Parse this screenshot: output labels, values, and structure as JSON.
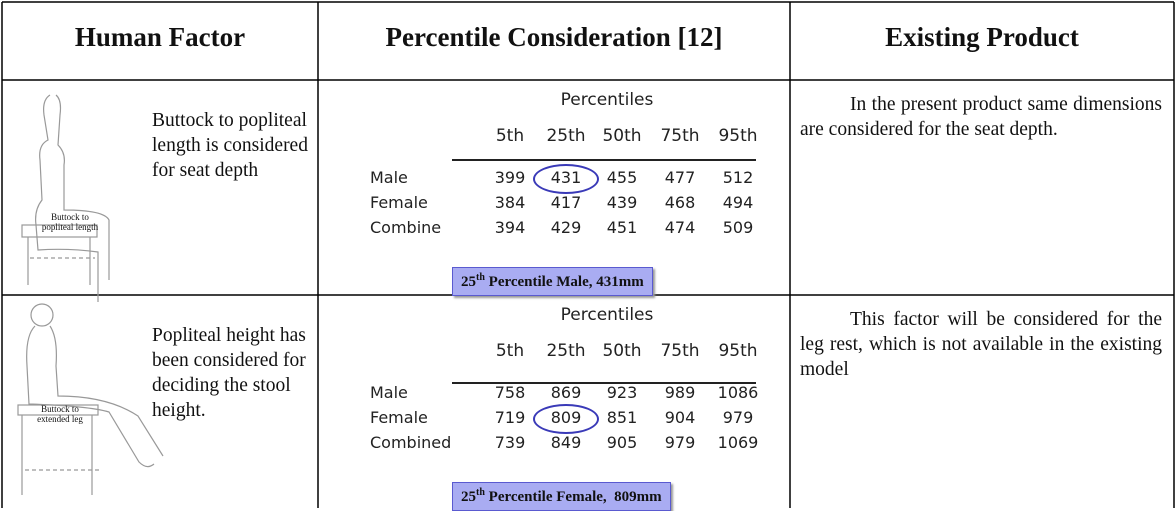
{
  "table": {
    "headers": [
      "Human Factor",
      "Percentile Consideration [12]",
      "Existing Product"
    ],
    "rows": [
      {
        "figure_label": "Buttock to popliteal length",
        "factor": "Buttock to popliteal length is considered for seat depth",
        "percentiles": {
          "title": "Percentiles",
          "columns": [
            "5th",
            "25th",
            "50th",
            "75th",
            "95th"
          ],
          "rows": [
            {
              "group": "Male",
              "values": [
                399,
                431,
                455,
                477,
                512
              ]
            },
            {
              "group": "Female",
              "values": [
                384,
                417,
                439,
                468,
                494
              ]
            },
            {
              "group": "Combine",
              "values": [
                394,
                429,
                451,
                474,
                509
              ]
            }
          ]
        },
        "callout": {
          "number": "25",
          "suffix": "th",
          "text": "Percentile Male, 431mm"
        },
        "existing": "In the present product same dimensions are considered for the seat depth."
      },
      {
        "figure_label": "Buttock to extended leg",
        "factor": "Popliteal height has been considered for deciding the stool height.",
        "percentiles": {
          "title": "Percentiles",
          "columns": [
            "5th",
            "25th",
            "50th",
            "75th",
            "95th"
          ],
          "rows": [
            {
              "group": "Male",
              "values": [
                758,
                869,
                923,
                989,
                1086
              ]
            },
            {
              "group": "Female",
              "values": [
                719,
                809,
                851,
                904,
                979
              ]
            },
            {
              "group": "Combined",
              "values": [
                739,
                849,
                905,
                979,
                1069
              ]
            }
          ]
        },
        "callout": {
          "number": "25",
          "suffix": "th",
          "text": "Percentile Female,  809mm"
        },
        "existing": "This factor will be considered for the leg rest, which is not available in the existing model"
      }
    ]
  }
}
